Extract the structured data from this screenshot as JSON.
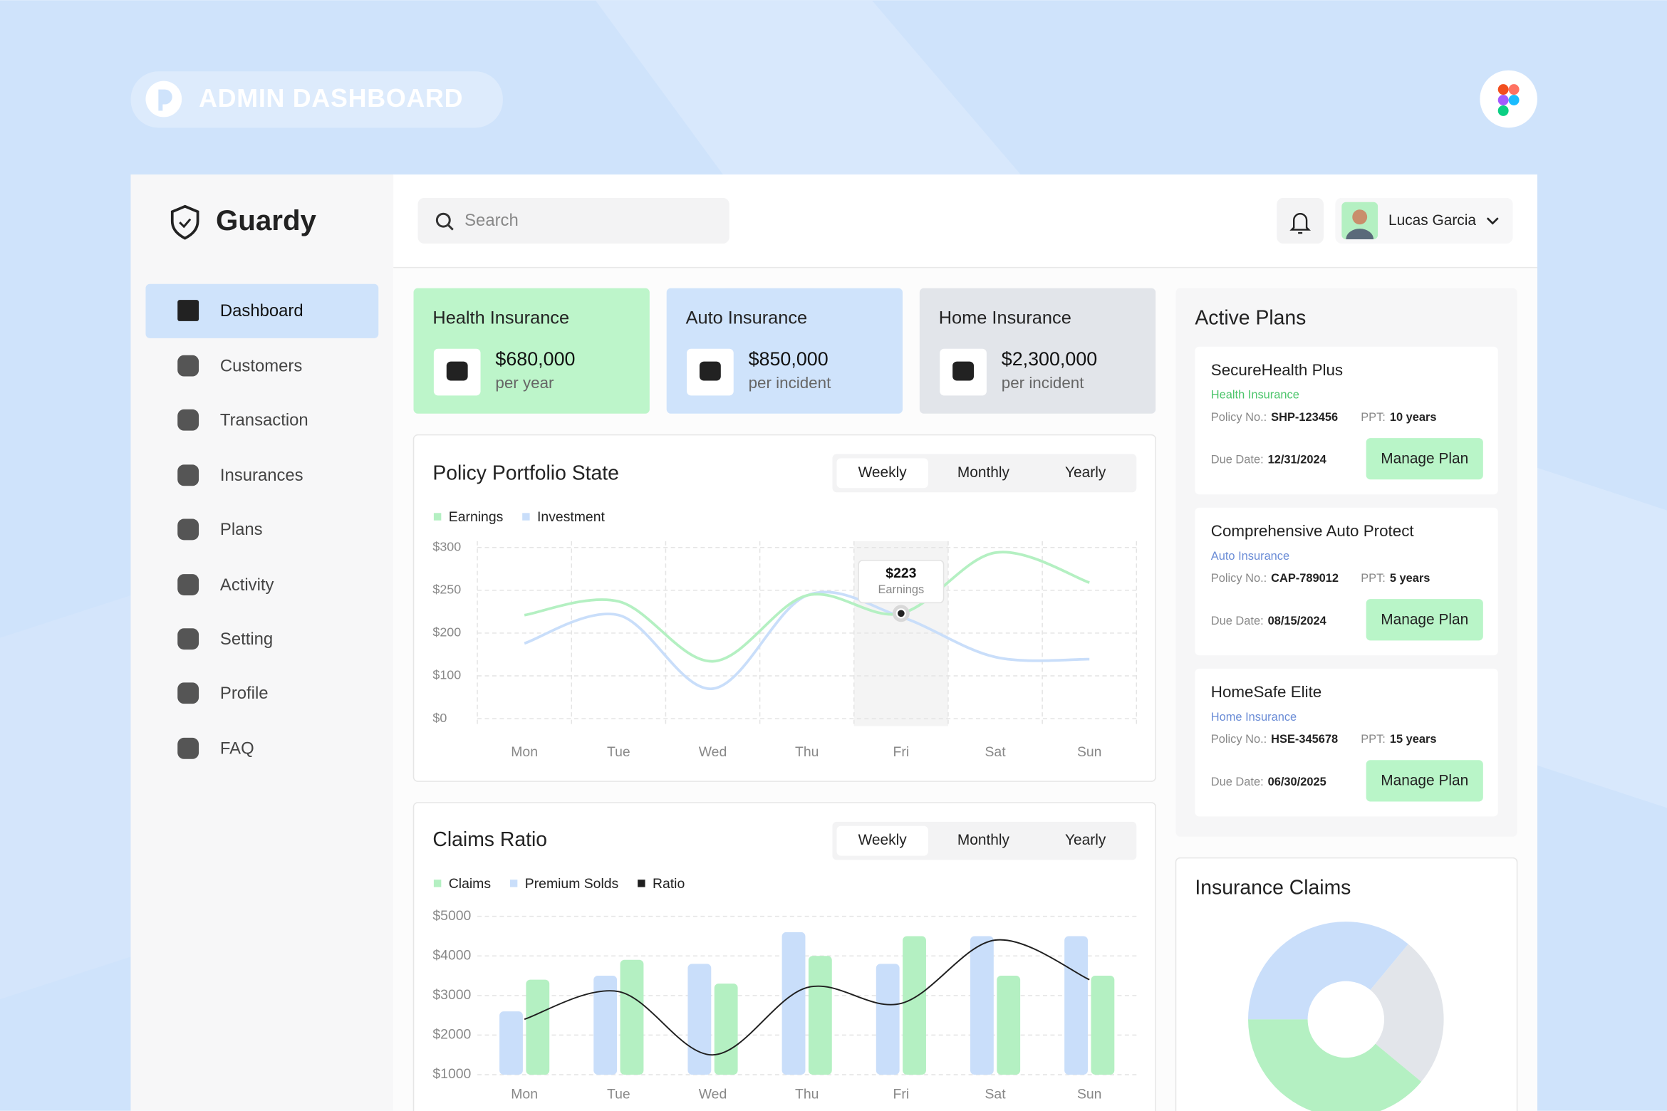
{
  "header": {
    "badge": "ADMIN DASHBOARD"
  },
  "sidebar": {
    "brand": "Guardy",
    "nav": [
      "Dashboard",
      "Customers",
      "Transaction",
      "Insurances",
      "Plans",
      "Activity",
      "Setting",
      "Profile",
      "FAQ"
    ]
  },
  "topbar": {
    "search": "Search",
    "user": "Lucas Garcia"
  },
  "cards": [
    {
      "title": "Health Insurance",
      "amount": "$680,000",
      "period": "per year"
    },
    {
      "title": "Auto Insurance",
      "amount": "$850,000",
      "period": "per incident"
    },
    {
      "title": "Home Insurance",
      "amount": "$2,300,000",
      "period": "per incident"
    }
  ],
  "active_plans": {
    "title": "Active Plans",
    "policy_label": "Policy No.:",
    "ppt_label": "PPT:",
    "due_label": "Due Date:",
    "button": "Manage Plan",
    "plans": [
      {
        "name": "SecureHealth Plus",
        "category": "Health Insurance",
        "policy_no": "SHP-123456",
        "ppt": "10 years",
        "due_date": "12/31/2024"
      },
      {
        "name": "Comprehensive Auto Protect",
        "category": "Auto Insurance",
        "policy_no": "CAP-789012",
        "ppt": "5 years",
        "due_date": "08/15/2024"
      },
      {
        "name": "HomeSafe Elite",
        "category": "Home Insurance",
        "policy_no": "HSE-345678",
        "ppt": "15 years",
        "due_date": "06/30/2025"
      }
    ]
  },
  "chart_data": [
    {
      "type": "line",
      "title": "Policy Portfolio State",
      "tabs": [
        "Weekly",
        "Monthly",
        "Yearly"
      ],
      "categories": [
        "Mon",
        "Tue",
        "Wed",
        "Thu",
        "Fri",
        "Sat",
        "Sun"
      ],
      "series": [
        {
          "name": "Earnings",
          "color": "#b4f0c2",
          "values": [
            221,
            237,
            134,
            244,
            223,
            294,
            259
          ]
        },
        {
          "name": "Investment",
          "color": "#c9defa",
          "values": [
            176,
            221,
            70,
            244,
            219,
            144,
            139
          ]
        }
      ],
      "ylim": [
        0,
        300
      ],
      "yticks": [
        {
          "value": 0,
          "label": "$0"
        },
        {
          "value": 100,
          "label": "$100"
        },
        {
          "value": 200,
          "label": "$200"
        },
        {
          "value": 250,
          "label": "$250"
        },
        {
          "value": 300,
          "label": "$300"
        }
      ],
      "grid": true,
      "tooltip": {
        "category": "Fri",
        "series": "Earnings",
        "label": "$223"
      }
    },
    {
      "type": "bar",
      "title": "Claims Ratio",
      "tabs": [
        "Weekly",
        "Monthly",
        "Yearly"
      ],
      "categories": [
        "Mon",
        "Tue",
        "Wed",
        "Thu",
        "Fri",
        "Sat",
        "Sun"
      ],
      "series": [
        {
          "name": "Claims",
          "color": "#b4f0c2",
          "values": [
            3400,
            3900,
            3300,
            4000,
            4500,
            3500,
            3500
          ]
        },
        {
          "name": "Premium Solds",
          "color": "#c9defa",
          "values": [
            2600,
            3500,
            3800,
            4600,
            3800,
            4500,
            4500
          ]
        },
        {
          "name": "Ratio",
          "color": "#1f1f1f",
          "type": "line",
          "values": [
            2400,
            3100,
            1500,
            3200,
            2800,
            4400,
            3400
          ]
        }
      ],
      "ylim": [
        1000,
        5000
      ],
      "yticks": [
        {
          "value": 1000,
          "label": "$1000"
        },
        {
          "value": 2000,
          "label": "$2000"
        },
        {
          "value": 3000,
          "label": "$3000"
        },
        {
          "value": 4000,
          "label": "$4000"
        },
        {
          "value": 5000,
          "label": "$5000"
        }
      ],
      "grid": true
    },
    {
      "type": "pie",
      "title": "Insurance Claims",
      "values": [
        36,
        25,
        39
      ],
      "colors": [
        "#c9defa",
        "#e2e5ea",
        "#b4f0c2"
      ]
    }
  ]
}
